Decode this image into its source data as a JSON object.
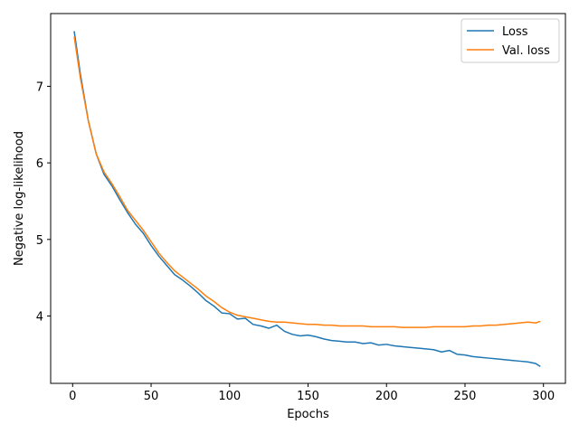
{
  "chart_data": {
    "type": "line",
    "title": "",
    "xlabel": "Epochs",
    "ylabel": "Negative log-likelihood",
    "xlim": [
      -14,
      314
    ],
    "ylim": [
      3.12,
      7.95
    ],
    "xticks": [
      0,
      50,
      100,
      150,
      200,
      250,
      300
    ],
    "yticks": [
      4,
      5,
      6,
      7
    ],
    "grid": false,
    "legend_position": "top-right",
    "series": [
      {
        "name": "Loss",
        "color": "#1f77b4",
        "x": [
          1,
          5,
          10,
          15,
          20,
          25,
          30,
          35,
          40,
          45,
          50,
          55,
          60,
          65,
          70,
          75,
          80,
          85,
          90,
          95,
          100,
          105,
          110,
          115,
          120,
          125,
          130,
          135,
          140,
          145,
          150,
          155,
          160,
          165,
          170,
          175,
          180,
          185,
          190,
          195,
          200,
          205,
          210,
          215,
          220,
          225,
          230,
          235,
          240,
          245,
          250,
          255,
          260,
          265,
          270,
          275,
          280,
          285,
          290,
          295,
          298
        ],
        "values": [
          7.72,
          7.15,
          6.55,
          6.12,
          5.85,
          5.7,
          5.52,
          5.35,
          5.2,
          5.08,
          4.92,
          4.78,
          4.66,
          4.54,
          4.47,
          4.39,
          4.3,
          4.2,
          4.13,
          4.04,
          4.03,
          3.96,
          3.97,
          3.89,
          3.87,
          3.84,
          3.88,
          3.8,
          3.76,
          3.74,
          3.75,
          3.73,
          3.7,
          3.68,
          3.67,
          3.66,
          3.66,
          3.64,
          3.65,
          3.62,
          3.63,
          3.61,
          3.6,
          3.59,
          3.58,
          3.57,
          3.56,
          3.53,
          3.55,
          3.5,
          3.49,
          3.47,
          3.46,
          3.45,
          3.44,
          3.43,
          3.42,
          3.41,
          3.4,
          3.38,
          3.34
        ]
      },
      {
        "name": "Val. loss",
        "color": "#ff7f0e",
        "x": [
          1,
          5,
          10,
          15,
          20,
          25,
          30,
          35,
          40,
          45,
          50,
          55,
          60,
          65,
          70,
          75,
          80,
          85,
          90,
          95,
          100,
          105,
          110,
          115,
          120,
          125,
          130,
          135,
          140,
          145,
          150,
          155,
          160,
          165,
          170,
          175,
          180,
          185,
          190,
          195,
          200,
          205,
          210,
          215,
          220,
          225,
          230,
          235,
          240,
          245,
          250,
          255,
          260,
          265,
          270,
          275,
          280,
          285,
          290,
          295,
          298
        ],
        "values": [
          7.65,
          7.1,
          6.55,
          6.12,
          5.88,
          5.73,
          5.56,
          5.38,
          5.25,
          5.12,
          4.97,
          4.82,
          4.7,
          4.59,
          4.51,
          4.43,
          4.35,
          4.26,
          4.19,
          4.11,
          4.05,
          4.01,
          3.99,
          3.97,
          3.95,
          3.93,
          3.92,
          3.92,
          3.91,
          3.9,
          3.89,
          3.89,
          3.88,
          3.88,
          3.87,
          3.87,
          3.87,
          3.87,
          3.86,
          3.86,
          3.86,
          3.86,
          3.85,
          3.85,
          3.85,
          3.85,
          3.86,
          3.86,
          3.86,
          3.86,
          3.86,
          3.87,
          3.87,
          3.88,
          3.88,
          3.89,
          3.9,
          3.91,
          3.92,
          3.91,
          3.93
        ]
      }
    ]
  }
}
